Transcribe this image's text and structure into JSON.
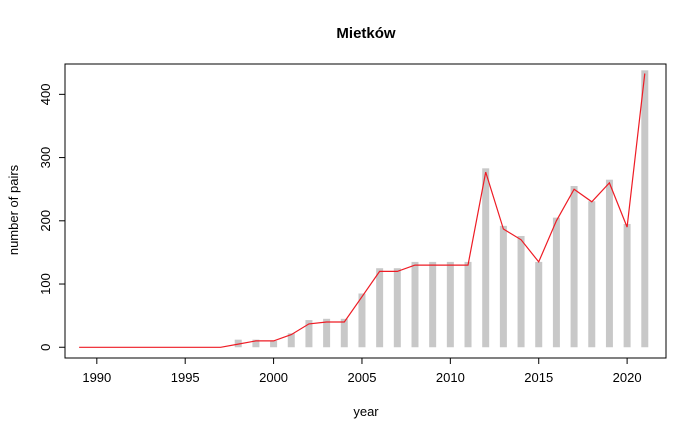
{
  "chart_data": {
    "type": "bar",
    "title": "Mietków",
    "xlabel": "year",
    "ylabel": "number of pairs",
    "xlim": [
      1988.2,
      2022.2
    ],
    "ylim": [
      -17,
      448
    ],
    "x_ticks": [
      1990,
      1995,
      2000,
      2005,
      2010,
      2015,
      2020
    ],
    "y_ticks": [
      0,
      100,
      200,
      300,
      400
    ],
    "grid": false,
    "legend": "none",
    "x": [
      1989,
      1990,
      1991,
      1992,
      1993,
      1994,
      1995,
      1996,
      1997,
      1998,
      1999,
      2000,
      2001,
      2002,
      2003,
      2004,
      2005,
      2006,
      2007,
      2008,
      2009,
      2010,
      2011,
      2012,
      2013,
      2014,
      2015,
      2016,
      2017,
      2018,
      2019,
      2020,
      2021
    ],
    "series": [
      {
        "type": "bar",
        "color": "#c8c8c8",
        "values": [
          0,
          0,
          0,
          0,
          0,
          0,
          0,
          0,
          0,
          12,
          12,
          10,
          22,
          43,
          45,
          45,
          85,
          125,
          125,
          135,
          135,
          135,
          135,
          283,
          192,
          176,
          135,
          205,
          255,
          231,
          265,
          195,
          438
        ]
      },
      {
        "type": "line",
        "color": "#ee1c25",
        "values": [
          0,
          0,
          0,
          0,
          0,
          0,
          0,
          0,
          0,
          5,
          10,
          10,
          20,
          37,
          40,
          40,
          80,
          120,
          120,
          130,
          130,
          130,
          130,
          277,
          187,
          170,
          135,
          200,
          250,
          230,
          260,
          190,
          433
        ]
      }
    ]
  }
}
